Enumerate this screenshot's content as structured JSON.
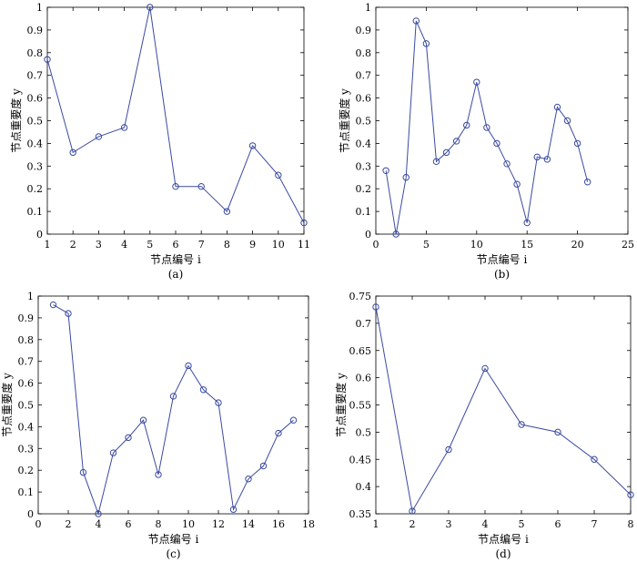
{
  "chart_data": [
    {
      "id": "a",
      "type": "line",
      "caption": "(a)",
      "xlabel": "节点编号 i",
      "ylabel": "节点重要度 y",
      "xlim": [
        1,
        11
      ],
      "ylim": [
        0,
        1
      ],
      "xticks": [
        1,
        2,
        3,
        4,
        5,
        6,
        7,
        8,
        9,
        10,
        11
      ],
      "yticks": [
        0,
        0.1,
        0.2,
        0.3,
        0.4,
        0.5,
        0.6,
        0.7,
        0.8,
        0.9,
        1
      ],
      "x": [
        1,
        2,
        3,
        4,
        5,
        6,
        7,
        8,
        9,
        10,
        11
      ],
      "values": [
        0.77,
        0.36,
        0.43,
        0.47,
        1.0,
        0.21,
        0.21,
        0.1,
        0.39,
        0.26,
        0.05
      ],
      "color": "#3a4aa0"
    },
    {
      "id": "b",
      "type": "line",
      "caption": "(b)",
      "xlabel": "节点编号 i",
      "ylabel": "节点重要度 y",
      "xlim": [
        0,
        25
      ],
      "ylim": [
        0,
        1
      ],
      "xticks": [
        0,
        5,
        10,
        15,
        20,
        25
      ],
      "yticks": [
        0,
        0.1,
        0.2,
        0.3,
        0.4,
        0.5,
        0.6,
        0.7,
        0.8,
        0.9,
        1
      ],
      "x": [
        1,
        2,
        3,
        4,
        5,
        6,
        7,
        8,
        9,
        10,
        11,
        12,
        13,
        14,
        15,
        16,
        17,
        18,
        19,
        20,
        21
      ],
      "values": [
        0.28,
        0.0,
        0.25,
        0.94,
        0.84,
        0.32,
        0.36,
        0.41,
        0.48,
        0.67,
        0.47,
        0.4,
        0.31,
        0.22,
        0.05,
        0.34,
        0.33,
        0.56,
        0.5,
        0.4,
        0.23
      ],
      "color": "#3a4aa0"
    },
    {
      "id": "c",
      "type": "line",
      "caption": "(c)",
      "xlabel": "节点编号 i",
      "ylabel": "节点重要度 y",
      "xlim": [
        0,
        18
      ],
      "ylim": [
        0,
        1
      ],
      "xticks": [
        0,
        2,
        4,
        6,
        8,
        10,
        12,
        14,
        16,
        18
      ],
      "yticks": [
        0,
        0.1,
        0.2,
        0.3,
        0.4,
        0.5,
        0.6,
        0.7,
        0.8,
        0.9,
        1
      ],
      "x": [
        1,
        2,
        3,
        4,
        5,
        6,
        7,
        8,
        9,
        10,
        11,
        12,
        13,
        14,
        15,
        16,
        17
      ],
      "values": [
        0.96,
        0.92,
        0.19,
        0.0,
        0.28,
        0.35,
        0.43,
        0.18,
        0.54,
        0.68,
        0.57,
        0.51,
        0.02,
        0.16,
        0.22,
        0.37,
        0.43
      ],
      "color": "#3a4aa0"
    },
    {
      "id": "d",
      "type": "line",
      "caption": "(d)",
      "xlabel": "节点编号 i",
      "ylabel": "节点重要度 y",
      "xlim": [
        1,
        8
      ],
      "ylim": [
        0.35,
        0.75
      ],
      "xticks": [
        1,
        2,
        3,
        4,
        5,
        6,
        7,
        8
      ],
      "yticks": [
        0.35,
        0.4,
        0.45,
        0.5,
        0.55,
        0.6,
        0.65,
        0.7,
        0.75
      ],
      "x": [
        1,
        2,
        3,
        4,
        5,
        6,
        7,
        8
      ],
      "values": [
        0.73,
        0.355,
        0.468,
        0.617,
        0.514,
        0.5,
        0.45,
        0.385
      ],
      "color": "#3a4aa0"
    }
  ]
}
